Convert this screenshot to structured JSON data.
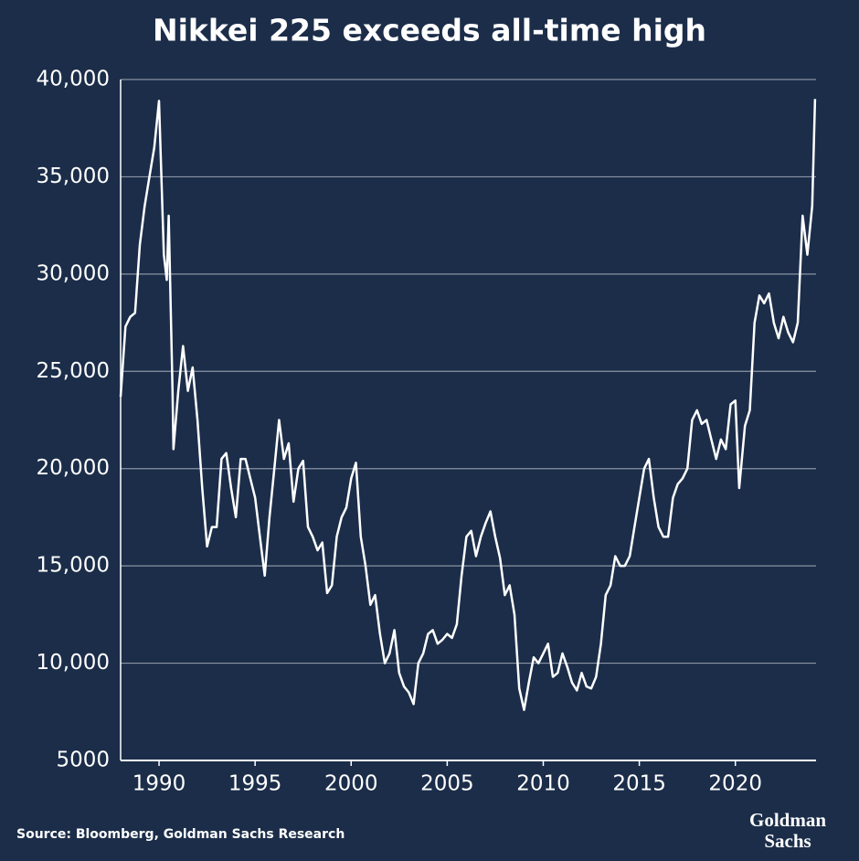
{
  "chart_data": {
    "type": "line",
    "title": "Nikkei 225 exceeds all-time high",
    "source": "Source: Bloomberg, Goldman Sachs Research",
    "brand": [
      "Goldman",
      "Sachs"
    ],
    "color": "#ffffff",
    "grid": true,
    "xlim": [
      1988,
      2024.2
    ],
    "xticks": [
      1990,
      1995,
      2000,
      2005,
      2010,
      2015,
      2020
    ],
    "ylim": [
      5000,
      40000
    ],
    "yticks": [
      5000,
      {
        "value": 10000,
        "label": "10,000"
      },
      {
        "value": 15000,
        "label": "15,000"
      },
      {
        "value": 20000,
        "label": "20,000"
      },
      {
        "value": 25000,
        "label": "25,000"
      },
      {
        "value": 30000,
        "label": "30,000"
      },
      {
        "value": 35000,
        "label": "35,000"
      },
      {
        "value": 40000,
        "label": "40,000"
      }
    ],
    "x": [
      1988.0,
      1988.25,
      1988.5,
      1988.75,
      1989.0,
      1989.25,
      1989.5,
      1989.75,
      1990.0,
      1990.25,
      1990.4,
      1990.5,
      1990.7,
      1990.75,
      1991.0,
      1991.25,
      1991.5,
      1991.75,
      1992.0,
      1992.25,
      1992.5,
      1992.75,
      1993.0,
      1993.25,
      1993.5,
      1993.75,
      1994.0,
      1994.25,
      1994.5,
      1994.75,
      1995.0,
      1995.25,
      1995.5,
      1995.75,
      1996.0,
      1996.25,
      1996.5,
      1996.75,
      1997.0,
      1997.25,
      1997.5,
      1997.75,
      1998.0,
      1998.25,
      1998.5,
      1998.75,
      1999.0,
      1999.25,
      1999.5,
      1999.75,
      2000.0,
      2000.25,
      2000.5,
      2000.75,
      2001.0,
      2001.25,
      2001.5,
      2001.75,
      2002.0,
      2002.25,
      2002.5,
      2002.75,
      2003.0,
      2003.25,
      2003.5,
      2003.75,
      2004.0,
      2004.25,
      2004.5,
      2004.75,
      2005.0,
      2005.25,
      2005.5,
      2005.75,
      2006.0,
      2006.25,
      2006.5,
      2006.75,
      2007.0,
      2007.25,
      2007.5,
      2007.75,
      2008.0,
      2008.25,
      2008.5,
      2008.75,
      2009.0,
      2009.25,
      2009.5,
      2009.75,
      2010.0,
      2010.25,
      2010.5,
      2010.75,
      2011.0,
      2011.25,
      2011.5,
      2011.75,
      2012.0,
      2012.25,
      2012.5,
      2012.75,
      2013.0,
      2013.25,
      2013.5,
      2013.75,
      2014.0,
      2014.25,
      2014.5,
      2014.75,
      2015.0,
      2015.25,
      2015.5,
      2015.75,
      2016.0,
      2016.25,
      2016.5,
      2016.75,
      2017.0,
      2017.25,
      2017.5,
      2017.75,
      2018.0,
      2018.25,
      2018.5,
      2018.75,
      2019.0,
      2019.25,
      2019.5,
      2019.75,
      2020.0,
      2020.2,
      2020.5,
      2020.75,
      2021.0,
      2021.25,
      2021.5,
      2021.75,
      2022.0,
      2022.25,
      2022.5,
      2022.75,
      2023.0,
      2023.25,
      2023.5,
      2023.75,
      2024.0,
      2024.15
    ],
    "values": [
      23700,
      27300,
      27800,
      28000,
      31500,
      33500,
      35000,
      36500,
      38900,
      31000,
      29700,
      33000,
      24000,
      21000,
      24000,
      26300,
      24000,
      25200,
      22500,
      19000,
      16000,
      17000,
      17000,
      20500,
      20800,
      19000,
      17500,
      20500,
      20500,
      19500,
      18500,
      16500,
      14500,
      17500,
      20000,
      22500,
      20500,
      21300,
      18300,
      20000,
      20400,
      17000,
      16500,
      15800,
      16200,
      13600,
      14000,
      16500,
      17500,
      18000,
      19500,
      20300,
      16500,
      15000,
      13000,
      13500,
      11500,
      10000,
      10500,
      11700,
      9500,
      8800,
      8500,
      7900,
      10000,
      10500,
      11500,
      11700,
      11000,
      11200,
      11500,
      11300,
      12000,
      14500,
      16500,
      16800,
      15500,
      16500,
      17200,
      17800,
      16500,
      15400,
      13500,
      14000,
      12500,
      8700,
      7600,
      9000,
      10300,
      10000,
      10500,
      11000,
      9300,
      9500,
      10500,
      9800,
      9000,
      8600,
      9500,
      8800,
      8700,
      9300,
      11000,
      13500,
      14000,
      15500,
      15000,
      15000,
      15500,
      17000,
      18500,
      20000,
      20500,
      18500,
      17000,
      16500,
      16500,
      18500,
      19200,
      19500,
      20000,
      22500,
      23000,
      22300,
      22500,
      21500,
      20500,
      21500,
      21000,
      23300,
      23500,
      19000,
      22200,
      23000,
      27500,
      28900,
      28500,
      29000,
      27500,
      26700,
      27800,
      27000,
      26500,
      27500,
      33000,
      31000,
      33500,
      39000
    ]
  }
}
